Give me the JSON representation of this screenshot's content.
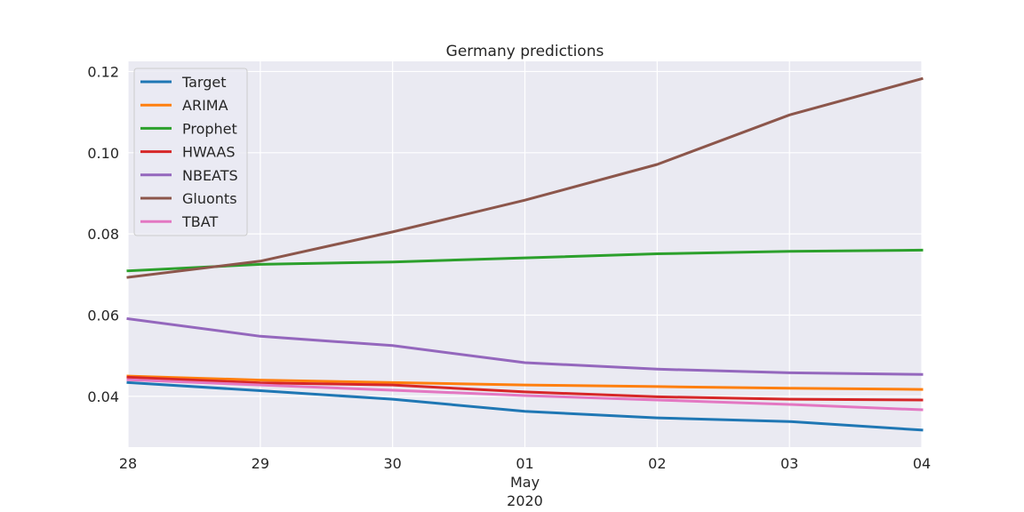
{
  "chart_data": {
    "type": "line",
    "title": "Germany predictions",
    "xlabel": "",
    "ylabel": "",
    "x": [
      "2020-04-28",
      "2020-04-29",
      "2020-04-30",
      "2020-05-01",
      "2020-05-02",
      "2020-05-03",
      "2020-05-04"
    ],
    "x_tick_labels": [
      "28",
      "29",
      "30",
      "01",
      "02",
      "03",
      "04"
    ],
    "x_secondary_label": [
      "May",
      "2020"
    ],
    "xlim": [
      "2020-04-28",
      "2020-05-04"
    ],
    "ylim": [
      0.0275,
      0.1225
    ],
    "y_ticks": [
      0.04,
      0.06,
      0.08,
      0.1,
      0.12
    ],
    "y_tick_labels": [
      "0.04",
      "0.06",
      "0.08",
      "0.10",
      "0.12"
    ],
    "grid": true,
    "legend_position": "top-left",
    "series": [
      {
        "name": "Target",
        "color": "#1f77b4",
        "values": [
          0.0434,
          0.0414,
          0.0393,
          0.0363,
          0.0347,
          0.0338,
          0.0317
        ]
      },
      {
        "name": "ARIMA",
        "color": "#ff7f0e",
        "values": [
          0.045,
          0.044,
          0.0434,
          0.0428,
          0.0424,
          0.042,
          0.0417
        ]
      },
      {
        "name": "Prophet",
        "color": "#2ca02c",
        "values": [
          0.0709,
          0.0725,
          0.0731,
          0.0741,
          0.0751,
          0.0757,
          0.076
        ]
      },
      {
        "name": "HWAAS",
        "color": "#d62728",
        "values": [
          0.0447,
          0.0433,
          0.0428,
          0.0411,
          0.0399,
          0.0393,
          0.0391
        ]
      },
      {
        "name": "NBEATS",
        "color": "#9467bd",
        "values": [
          0.0591,
          0.0548,
          0.0525,
          0.0483,
          0.0467,
          0.0458,
          0.0454
        ]
      },
      {
        "name": "Gluonts",
        "color": "#8c564b",
        "values": [
          0.0693,
          0.0733,
          0.0805,
          0.0883,
          0.0971,
          0.1093,
          0.1182
        ]
      },
      {
        "name": "TBAT",
        "color": "#e377c2",
        "values": [
          0.0441,
          0.0428,
          0.0415,
          0.0402,
          0.0391,
          0.038,
          0.0367
        ]
      }
    ]
  }
}
